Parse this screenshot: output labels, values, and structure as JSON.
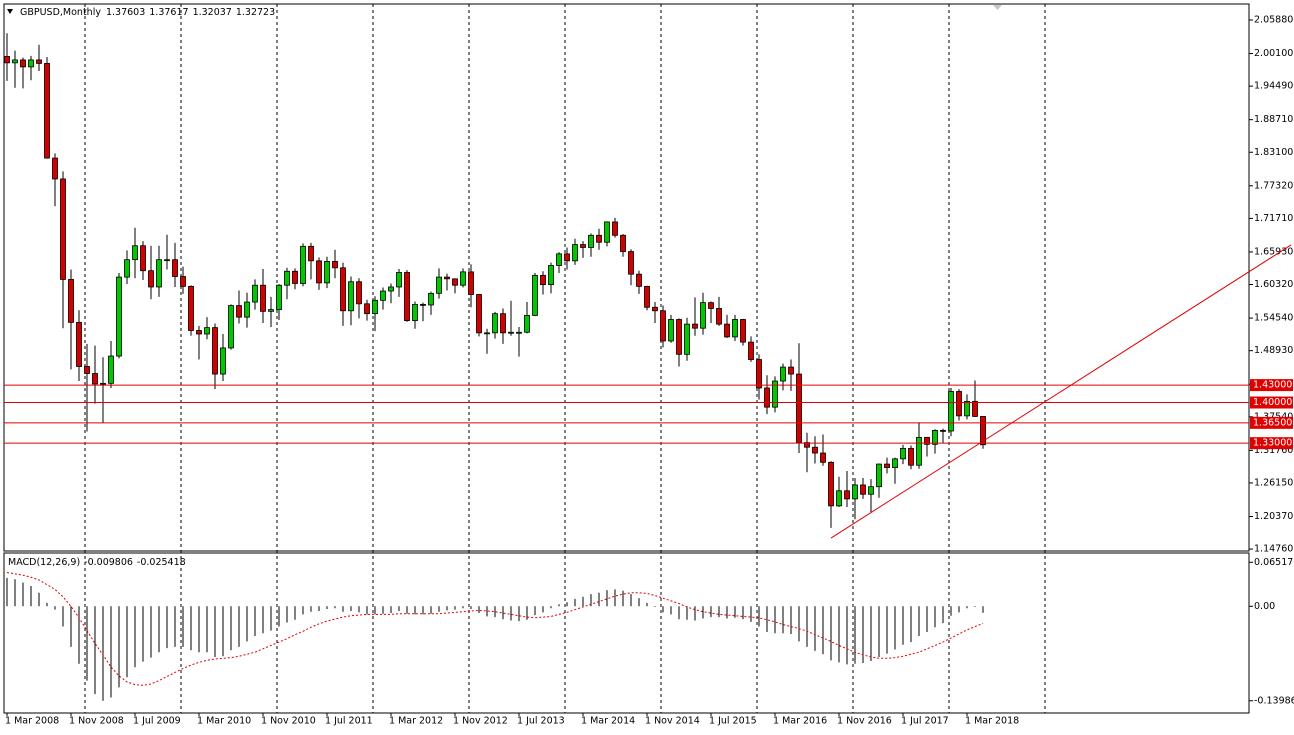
{
  "chart_data": {
    "type": "candlestick",
    "title": "GBPUSD,Monthly",
    "grid": false,
    "colors": {
      "up": "#00c800",
      "down": "#d40000",
      "wick": "#000000"
    },
    "categories": [
      "1 Mar 2008",
      null,
      null,
      null,
      null,
      null,
      null,
      null,
      "1 Nov 2008",
      null,
      null,
      null,
      null,
      null,
      null,
      null,
      "1 Jul 2009",
      null,
      null,
      null,
      null,
      null,
      null,
      null,
      "1 Mar 2010",
      null,
      null,
      null,
      null,
      null,
      null,
      null,
      "1 Nov 2010",
      null,
      null,
      null,
      null,
      null,
      null,
      null,
      "1 Jul 2011",
      null,
      null,
      null,
      null,
      null,
      null,
      null,
      "1 Mar 2012",
      null,
      null,
      null,
      null,
      null,
      null,
      null,
      "1 Nov 2012",
      null,
      null,
      null,
      null,
      null,
      null,
      null,
      "1 Jul 2013",
      null,
      null,
      null,
      null,
      null,
      null,
      null,
      "1 Mar 2014",
      null,
      null,
      null,
      null,
      null,
      null,
      null,
      "1 Nov 2014",
      null,
      null,
      null,
      null,
      null,
      null,
      null,
      "1 Jul 2015",
      null,
      null,
      null,
      null,
      null,
      null,
      null,
      "1 Mar 2016",
      null,
      null,
      null,
      null,
      null,
      null,
      null,
      "1 Nov 2016",
      null,
      null,
      null,
      null,
      null,
      null,
      null,
      "1 Jul 2017",
      null,
      null,
      null,
      null,
      null,
      null,
      null,
      "1 Mar 2018",
      null,
      null
    ],
    "open": [
      1.996,
      1.985,
      1.99,
      1.978,
      1.99,
      1.984,
      1.821,
      1.785,
      1.612,
      1.538,
      1.462,
      1.45,
      1.432,
      1.433,
      1.48,
      1.616,
      1.646,
      1.67,
      1.627,
      1.599,
      1.646,
      1.646,
      1.617,
      1.6,
      1.524,
      1.518,
      1.529,
      1.449,
      1.494,
      1.567,
      1.547,
      1.573,
      1.602,
      1.557,
      1.56,
      1.602,
      1.626,
      1.605,
      1.669,
      1.644,
      1.606,
      1.643,
      1.632,
      1.558,
      1.608,
      1.57,
      1.553,
      1.576,
      1.592,
      1.599,
      1.624,
      1.541,
      1.569,
      1.568,
      1.588,
      1.616,
      1.613,
      1.602,
      1.625,
      1.586,
      1.52,
      1.52,
      1.553,
      1.52,
      1.521,
      1.521,
      1.55,
      1.619,
      1.603,
      1.636,
      1.656,
      1.644,
      1.672,
      1.667,
      1.688,
      1.676,
      1.711,
      1.688,
      1.66,
      1.621,
      1.6,
      1.564,
      1.558,
      1.506,
      1.543,
      1.483,
      1.535,
      1.528,
      1.572,
      1.562,
      1.535,
      1.513,
      1.543,
      1.504,
      1.474,
      1.425,
      1.392,
      1.437,
      1.461,
      1.449,
      1.331,
      1.323,
      1.313,
      1.297,
      1.222,
      1.248,
      1.234,
      1.258,
      1.242,
      1.255,
      1.294,
      1.288,
      1.303,
      1.321,
      1.292,
      1.34,
      1.328,
      1.352,
      1.351,
      1.419,
      1.377,
      1.402,
      1.37603
    ],
    "high": [
      2.036,
      2.006,
      1.994,
      1.997,
      2.016,
      1.995,
      1.829,
      1.798,
      1.629,
      1.559,
      1.501,
      1.498,
      1.478,
      1.506,
      1.623,
      1.662,
      1.701,
      1.678,
      1.67,
      1.67,
      1.689,
      1.675,
      1.634,
      1.602,
      1.532,
      1.547,
      1.536,
      1.518,
      1.569,
      1.593,
      1.589,
      1.612,
      1.63,
      1.582,
      1.604,
      1.632,
      1.631,
      1.674,
      1.675,
      1.65,
      1.651,
      1.663,
      1.641,
      1.617,
      1.614,
      1.577,
      1.583,
      1.598,
      1.605,
      1.63,
      1.628,
      1.574,
      1.572,
      1.591,
      1.631,
      1.622,
      1.613,
      1.631,
      1.638,
      1.587,
      1.527,
      1.556,
      1.562,
      1.575,
      1.53,
      1.573,
      1.623,
      1.626,
      1.641,
      1.659,
      1.667,
      1.682,
      1.678,
      1.691,
      1.699,
      1.712,
      1.718,
      1.69,
      1.664,
      1.627,
      1.601,
      1.573,
      1.567,
      1.551,
      1.545,
      1.546,
      1.581,
      1.589,
      1.574,
      1.582,
      1.551,
      1.551,
      1.544,
      1.514,
      1.483,
      1.447,
      1.445,
      1.467,
      1.474,
      1.502,
      1.348,
      1.342,
      1.345,
      1.299,
      1.272,
      1.282,
      1.27,
      1.27,
      1.268,
      1.295,
      1.305,
      1.305,
      1.327,
      1.326,
      1.366,
      1.34,
      1.354,
      1.355,
      1.425,
      1.423,
      1.414,
      1.438,
      1.37617
    ],
    "low": [
      1.954,
      1.942,
      1.941,
      1.955,
      1.971,
      1.82,
      1.738,
      1.528,
      1.457,
      1.437,
      1.35,
      1.398,
      1.365,
      1.425,
      1.476,
      1.604,
      1.614,
      1.611,
      1.578,
      1.582,
      1.629,
      1.599,
      1.587,
      1.515,
      1.474,
      1.509,
      1.423,
      1.437,
      1.491,
      1.536,
      1.529,
      1.56,
      1.537,
      1.53,
      1.542,
      1.578,
      1.595,
      1.6,
      1.612,
      1.594,
      1.597,
      1.614,
      1.532,
      1.533,
      1.545,
      1.541,
      1.523,
      1.56,
      1.571,
      1.582,
      1.539,
      1.527,
      1.54,
      1.551,
      1.579,
      1.593,
      1.588,
      1.598,
      1.564,
      1.514,
      1.484,
      1.51,
      1.501,
      1.515,
      1.479,
      1.519,
      1.549,
      1.586,
      1.588,
      1.623,
      1.629,
      1.637,
      1.649,
      1.651,
      1.663,
      1.669,
      1.684,
      1.651,
      1.602,
      1.587,
      1.559,
      1.537,
      1.495,
      1.503,
      1.462,
      1.472,
      1.515,
      1.517,
      1.537,
      1.532,
      1.511,
      1.506,
      1.498,
      1.47,
      1.405,
      1.38,
      1.383,
      1.421,
      1.42,
      1.313,
      1.28,
      1.295,
      1.291,
      1.184,
      1.22,
      1.22,
      1.199,
      1.234,
      1.211,
      1.236,
      1.278,
      1.26,
      1.294,
      1.285,
      1.286,
      1.307,
      1.312,
      1.33,
      1.342,
      1.369,
      1.371,
      1.375,
      1.32037
    ],
    "close": [
      1.985,
      1.99,
      1.978,
      1.99,
      1.984,
      1.821,
      1.785,
      1.612,
      1.538,
      1.462,
      1.45,
      1.432,
      1.433,
      1.48,
      1.616,
      1.646,
      1.67,
      1.627,
      1.599,
      1.646,
      1.646,
      1.617,
      1.6,
      1.524,
      1.518,
      1.529,
      1.449,
      1.494,
      1.567,
      1.547,
      1.573,
      1.602,
      1.557,
      1.56,
      1.602,
      1.626,
      1.605,
      1.669,
      1.644,
      1.606,
      1.643,
      1.632,
      1.558,
      1.608,
      1.57,
      1.553,
      1.576,
      1.592,
      1.599,
      1.624,
      1.541,
      1.569,
      1.568,
      1.588,
      1.616,
      1.613,
      1.602,
      1.625,
      1.586,
      1.52,
      1.52,
      1.553,
      1.52,
      1.521,
      1.521,
      1.55,
      1.619,
      1.603,
      1.636,
      1.656,
      1.644,
      1.672,
      1.667,
      1.688,
      1.676,
      1.711,
      1.688,
      1.66,
      1.621,
      1.6,
      1.564,
      1.558,
      1.506,
      1.543,
      1.483,
      1.535,
      1.528,
      1.572,
      1.562,
      1.535,
      1.513,
      1.543,
      1.504,
      1.474,
      1.425,
      1.392,
      1.437,
      1.461,
      1.449,
      1.331,
      1.323,
      1.313,
      1.297,
      1.222,
      1.248,
      1.234,
      1.258,
      1.242,
      1.255,
      1.294,
      1.288,
      1.303,
      1.321,
      1.292,
      1.34,
      1.328,
      1.352,
      1.351,
      1.419,
      1.377,
      1.402,
      1.37603,
      1.32723
    ],
    "ylim": [
      1.146,
      2.0846
    ],
    "yticks": [
      {
        "value": 2.0588,
        "label": "2.05880"
      },
      {
        "value": 2.001,
        "label": "2.00100"
      },
      {
        "value": 1.9449,
        "label": "1.94490"
      },
      {
        "value": 1.8871,
        "label": "1.88710"
      },
      {
        "value": 1.831,
        "label": "1.83100"
      },
      {
        "value": 1.7732,
        "label": "1.77320"
      },
      {
        "value": 1.7171,
        "label": "1.71710"
      },
      {
        "value": 1.6593,
        "label": "1.65930"
      },
      {
        "value": 1.6032,
        "label": "1.60320"
      },
      {
        "value": 1.5454,
        "label": "1.54540"
      },
      {
        "value": 1.4893,
        "label": "1.48930"
      },
      {
        "value": 1.4315,
        "label": "1.43150"
      },
      {
        "value": 1.3754,
        "label": "1.37540"
      },
      {
        "value": 1.3176,
        "label": "1.31760"
      },
      {
        "value": 1.2615,
        "label": "1.26150"
      },
      {
        "value": 1.2037,
        "label": "1.20370"
      },
      {
        "value": 1.1476,
        "label": "1.14760"
      }
    ],
    "levels": [
      {
        "value": 1.43,
        "label": "1.43000"
      },
      {
        "value": 1.4,
        "label": "1.40000"
      },
      {
        "value": 1.365,
        "label": "1.36500"
      },
      {
        "value": 1.33,
        "label": "1.33000"
      }
    ],
    "level_color": "#e00000",
    "trendline": {
      "x": [
        103,
        160.5
      ],
      "y": [
        1.1666,
        1.6713
      ],
      "color": "#e00000"
    },
    "macd": {
      "type": "bar",
      "name": "MACD(12,26,9)",
      "color": "#000000",
      "values": [
        0.042,
        0.04,
        0.035,
        0.03,
        0.02,
        0.005,
        -0.005,
        -0.03,
        -0.06,
        -0.085,
        -0.11,
        -0.13,
        -0.14,
        -0.135,
        -0.12,
        -0.105,
        -0.09,
        -0.082,
        -0.076,
        -0.068,
        -0.062,
        -0.06,
        -0.06,
        -0.065,
        -0.068,
        -0.068,
        -0.075,
        -0.074,
        -0.065,
        -0.06,
        -0.052,
        -0.044,
        -0.04,
        -0.036,
        -0.03,
        -0.024,
        -0.02,
        -0.012,
        -0.008,
        -0.007,
        -0.004,
        -0.003,
        -0.008,
        -0.007,
        -0.009,
        -0.012,
        -0.012,
        -0.011,
        -0.01,
        -0.007,
        -0.011,
        -0.012,
        -0.012,
        -0.011,
        -0.008,
        -0.006,
        -0.005,
        -0.003,
        -0.004,
        -0.01,
        -0.015,
        -0.016,
        -0.019,
        -0.021,
        -0.022,
        -0.02,
        -0.013,
        -0.009,
        -0.003,
        0.003,
        0.006,
        0.011,
        0.014,
        0.018,
        0.02,
        0.024,
        0.025,
        0.023,
        0.018,
        0.012,
        0.005,
        -0.001,
        -0.009,
        -0.012,
        -0.019,
        -0.02,
        -0.021,
        -0.018,
        -0.016,
        -0.016,
        -0.018,
        -0.017,
        -0.019,
        -0.023,
        -0.03,
        -0.038,
        -0.04,
        -0.04,
        -0.041,
        -0.052,
        -0.06,
        -0.066,
        -0.071,
        -0.08,
        -0.083,
        -0.086,
        -0.085,
        -0.084,
        -0.081,
        -0.075,
        -0.07,
        -0.064,
        -0.057,
        -0.053,
        -0.044,
        -0.038,
        -0.031,
        -0.025,
        -0.014,
        -0.009,
        -0.003,
        -0.001,
        -0.009806
      ],
      "signal": [
        0.05,
        0.048,
        0.046,
        0.043,
        0.039,
        0.032,
        0.025,
        0.014,
        0,
        -0.017,
        -0.036,
        -0.055,
        -0.072,
        -0.09,
        -0.103,
        -0.112,
        -0.116,
        -0.117,
        -0.115,
        -0.11,
        -0.104,
        -0.098,
        -0.092,
        -0.087,
        -0.083,
        -0.08,
        -0.078,
        -0.077,
        -0.076,
        -0.074,
        -0.071,
        -0.068,
        -0.063,
        -0.058,
        -0.053,
        -0.048,
        -0.042,
        -0.037,
        -0.031,
        -0.026,
        -0.022,
        -0.019,
        -0.016,
        -0.014,
        -0.013,
        -0.012,
        -0.012,
        -0.012,
        -0.012,
        -0.011,
        -0.011,
        -0.011,
        -0.011,
        -0.011,
        -0.011,
        -0.01,
        -0.009,
        -0.008,
        -0.007,
        -0.006,
        -0.007,
        -0.008,
        -0.01,
        -0.012,
        -0.014,
        -0.016,
        -0.017,
        -0.016,
        -0.015,
        -0.012,
        -0.009,
        -0.005,
        -0.001,
        0.003,
        0.007,
        0.011,
        0.015,
        0.018,
        0.02,
        0.02,
        0.019,
        0.016,
        0.012,
        0.008,
        0.004,
        -0.001,
        -0.005,
        -0.008,
        -0.01,
        -0.012,
        -0.013,
        -0.014,
        -0.015,
        -0.016,
        -0.017,
        -0.02,
        -0.023,
        -0.027,
        -0.03,
        -0.033,
        -0.037,
        -0.042,
        -0.047,
        -0.052,
        -0.058,
        -0.063,
        -0.068,
        -0.072,
        -0.075,
        -0.077,
        -0.077,
        -0.076,
        -0.074,
        -0.071,
        -0.068,
        -0.063,
        -0.058,
        -0.053,
        -0.047,
        -0.041,
        -0.035,
        -0.03,
        -0.025418
      ],
      "signal_color": "#e00000",
      "ylim": [
        -0.1565,
        0.0774
      ],
      "yticks": [
        0.065176,
        {
          "value": 0,
          "label": "0.00"
        },
        -0.139862
      ]
    }
  }
}
